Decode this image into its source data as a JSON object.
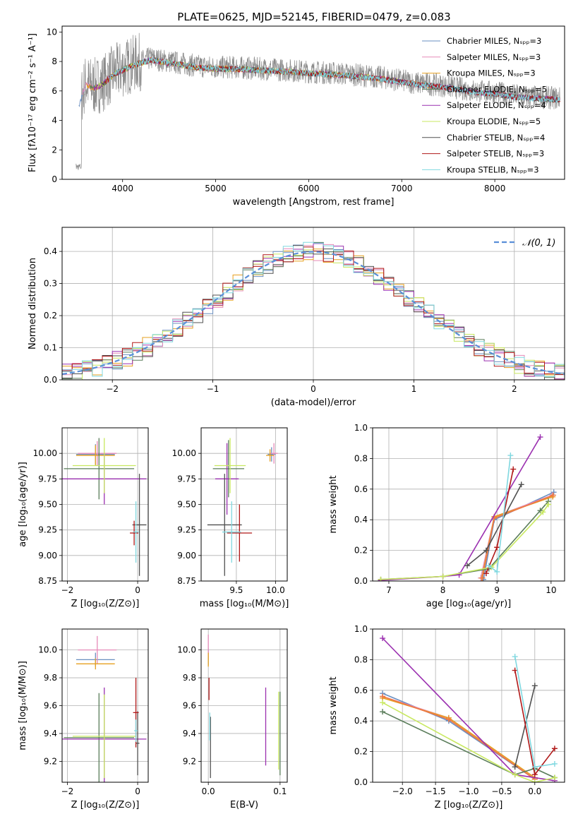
{
  "figure_title": "PLATE=0625, MJD=52145, FIBERID=0479, z=0.083",
  "colors": {
    "Chabrier MILES": "#6a8fc0",
    "Salpeter MILES": "#e68ab8",
    "Kroupa MILES": "#e6a020",
    "Chabrier ELODIE": "#5a7d5a",
    "Salpeter ELODIE": "#9b30b0",
    "Kroupa ELODIE": "#c8e860",
    "Chabrier STELIB": "#505050",
    "Salpeter STELIB": "#b01818",
    "Kroupa STELIB": "#80d8e0",
    "model_orange": "#ee7744",
    "normal": "#5a8fd8",
    "grid": "#b0b0b0"
  },
  "chart_data": [
    {
      "id": "spectrum",
      "type": "line",
      "xlabel": "wavelength [Angstrom, rest frame]",
      "ylabel": "Flux [fλ10⁻¹⁷ erg cm⁻² s⁻¹ A⁻¹]",
      "xlim": [
        3350,
        8750
      ],
      "ylim": [
        0,
        10.4
      ],
      "xticks": [
        4000,
        5000,
        6000,
        7000,
        8000
      ],
      "yticks": [
        0,
        2,
        4,
        6,
        8,
        10
      ],
      "grid": false,
      "legend_position": "top-right",
      "continuum": {
        "x": [
          3500,
          3600,
          3700,
          3800,
          3900,
          4000,
          4100,
          4300,
          4500,
          4800,
          5000,
          5200,
          5500,
          5800,
          6000,
          6300,
          6500,
          6800,
          7000,
          7200,
          7400,
          7600,
          7800,
          8000,
          8200,
          8400,
          8700
        ],
        "y": [
          4.5,
          6.5,
          6.3,
          6.6,
          7.2,
          7.5,
          7.8,
          8.2,
          8.0,
          7.7,
          7.6,
          7.6,
          7.5,
          7.4,
          7.3,
          7.2,
          7.1,
          6.9,
          6.7,
          6.5,
          6.4,
          6.2,
          6.0,
          5.9,
          5.7,
          5.6,
          5.5
        ]
      },
      "series": [
        {
          "name": "Chabrier MILES, Nₛₚₚ=3",
          "key": "Chabrier MILES"
        },
        {
          "name": "Salpeter MILES, Nₛₚₚ=3",
          "key": "Salpeter MILES"
        },
        {
          "name": "Kroupa MILES, Nₛₚₚ=3",
          "key": "Kroupa MILES"
        },
        {
          "name": "Chabrier ELODIE, Nₛₚₚ=5",
          "key": "Chabrier ELODIE"
        },
        {
          "name": "Salpeter ELODIE, Nₛₚₚ=4",
          "key": "Salpeter ELODIE"
        },
        {
          "name": "Kroupa ELODIE, Nₛₚₚ=5",
          "key": "Kroupa ELODIE"
        },
        {
          "name": "Chabrier STELIB, Nₛₚₚ=4",
          "key": "Chabrier STELIB"
        },
        {
          "name": "Salpeter STELIB, Nₛₚₚ=3",
          "key": "Salpeter STELIB"
        },
        {
          "name": "Kroupa STELIB, Nₛₚₚ=3",
          "key": "Kroupa STELIB"
        }
      ]
    },
    {
      "id": "residuals",
      "type": "line",
      "xlabel": "(data-model)/error",
      "ylabel": "Normed distribution",
      "xlim": [
        -2.5,
        2.5
      ],
      "ylim": [
        0,
        0.475
      ],
      "xticks": [
        -2,
        -1,
        0,
        1,
        2
      ],
      "yticks": [
        0.0,
        0.1,
        0.2,
        0.3,
        0.4
      ],
      "grid": true,
      "legend_position": "top-right",
      "legend": "𝒩(0, 1)",
      "bin_width": 0.1
    },
    {
      "id": "age_vs_Z",
      "type": "scatter",
      "xlabel": "Z [log₁₀(Z/Z⊙)]",
      "ylabel": "age  [log₁₀(age/yr)]",
      "xlim": [
        -2.15,
        0.3
      ],
      "ylim": [
        8.75,
        10.25
      ],
      "xticks": [
        -2,
        0
      ],
      "yticks": [
        8.75,
        9.0,
        9.25,
        9.5,
        9.75,
        10.0
      ],
      "grid": true,
      "points": [
        {
          "key": "Chabrier MILES",
          "x": -1.2,
          "xerr": 0.55,
          "y": 9.99,
          "yerr": 0.1
        },
        {
          "key": "Salpeter MILES",
          "x": -1.15,
          "xerr": 0.55,
          "y": 10.0,
          "yerr": 0.12
        },
        {
          "key": "Kroupa MILES",
          "x": -1.2,
          "xerr": 0.55,
          "y": 9.98,
          "yerr": 0.1
        },
        {
          "key": "Chabrier ELODIE",
          "x": -1.1,
          "xerr": 1.0,
          "y": 9.85,
          "yerr": 0.3
        },
        {
          "key": "Salpeter ELODIE",
          "x": -0.95,
          "xerr": 1.2,
          "y": 9.75,
          "yerr": 0.25
        },
        {
          "key": "Kroupa ELODIE",
          "x": -0.95,
          "xerr": 0.9,
          "y": 9.88,
          "yerr": 0.27
        },
        {
          "key": "Chabrier STELIB",
          "x": 0.05,
          "xerr": 0.2,
          "y": 9.3,
          "yerr": 0.5
        },
        {
          "key": "Salpeter STELIB",
          "x": -0.1,
          "xerr": 0.12,
          "y": 9.22,
          "yerr": 0.12
        },
        {
          "key": "Kroupa STELIB",
          "x": -0.05,
          "xerr": 0.08,
          "y": 9.23,
          "yerr": 0.3
        }
      ]
    },
    {
      "id": "age_vs_mass",
      "type": "scatter",
      "xlabel": "mass [log₁₀(M/M⊙)]",
      "ylabel": "",
      "xlim": [
        9.05,
        10.15
      ],
      "ylim": [
        8.75,
        10.25
      ],
      "xticks": [
        9.5,
        10.0
      ],
      "yticks": [
        8.75,
        9.0,
        9.25,
        9.5,
        9.75,
        10.0
      ],
      "grid": true,
      "points": [
        {
          "key": "Chabrier MILES",
          "x": 9.95,
          "xerr": 0.05,
          "y": 9.99,
          "yerr": 0.07
        },
        {
          "key": "Salpeter MILES",
          "x": 9.98,
          "xerr": 0.05,
          "y": 10.0,
          "yerr": 0.1
        },
        {
          "key": "Kroupa MILES",
          "x": 9.93,
          "xerr": 0.05,
          "y": 9.98,
          "yerr": 0.06
        },
        {
          "key": "Chabrier ELODIE",
          "x": 9.4,
          "xerr": 0.2,
          "y": 9.85,
          "yerr": 0.28
        },
        {
          "key": "Salpeter ELODIE",
          "x": 9.38,
          "xerr": 0.15,
          "y": 9.75,
          "yerr": 0.35
        },
        {
          "key": "Kroupa ELODIE",
          "x": 9.42,
          "xerr": 0.2,
          "y": 9.88,
          "yerr": 0.27
        },
        {
          "key": "Chabrier STELIB",
          "x": 9.35,
          "xerr": 0.22,
          "y": 9.3,
          "yerr": 0.5
        },
        {
          "key": "Salpeter STELIB",
          "x": 9.54,
          "xerr": 0.16,
          "y": 9.22,
          "yerr": 0.28
        },
        {
          "key": "Kroupa STELIB",
          "x": 9.44,
          "xerr": 0.12,
          "y": 9.23,
          "yerr": 0.3
        }
      ]
    },
    {
      "id": "weight_vs_age",
      "type": "line",
      "xlabel": "age  [log₁₀(age/yr)]",
      "ylabel": "mass weight",
      "xlim": [
        6.7,
        10.25
      ],
      "ylim": [
        0,
        1.0
      ],
      "xticks": [
        7,
        8,
        9,
        10
      ],
      "yticks": [
        0.0,
        0.2,
        0.4,
        0.6,
        0.8,
        1.0
      ],
      "grid": true,
      "series": [
        {
          "key": "Chabrier MILES",
          "x": [
            8.75,
            8.95,
            10.05
          ],
          "y": [
            0.01,
            0.4,
            0.58
          ]
        },
        {
          "key": "Salpeter MILES",
          "x": [
            8.7,
            8.95,
            10.02
          ],
          "y": [
            0.02,
            0.42,
            0.56
          ]
        },
        {
          "key": "Kroupa MILES",
          "x": [
            8.72,
            8.95,
            10.03
          ],
          "y": [
            0.02,
            0.42,
            0.55
          ]
        },
        {
          "key": "model_orange",
          "x": [
            8.73,
            8.95,
            10.04
          ],
          "y": [
            0.02,
            0.41,
            0.56
          ]
        },
        {
          "key": "Chabrier ELODIE",
          "x": [
            6.85,
            8.0,
            8.85,
            9.8,
            9.95
          ],
          "y": [
            0.01,
            0.03,
            0.08,
            0.46,
            0.52
          ]
        },
        {
          "key": "Salpeter ELODIE",
          "x": [
            6.85,
            8.0,
            8.3,
            9.8
          ],
          "y": [
            0.005,
            0.03,
            0.04,
            0.94
          ]
        },
        {
          "key": "Kroupa ELODIE",
          "x": [
            6.85,
            8.0,
            8.9,
            9.85,
            9.95
          ],
          "y": [
            0.01,
            0.03,
            0.09,
            0.45,
            0.5
          ]
        },
        {
          "key": "Chabrier STELIB",
          "x": [
            8.45,
            8.8,
            9.45
          ],
          "y": [
            0.1,
            0.2,
            0.63
          ]
        },
        {
          "key": "Salpeter STELIB",
          "x": [
            8.8,
            9.0,
            9.3
          ],
          "y": [
            0.05,
            0.22,
            0.73
          ]
        },
        {
          "key": "Kroupa STELIB",
          "x": [
            8.85,
            9.0,
            9.25
          ],
          "y": [
            0.1,
            0.06,
            0.82
          ]
        }
      ]
    },
    {
      "id": "mass_vs_Z",
      "type": "scatter",
      "xlabel": "Z [log₁₀(Z/Z⊙)]",
      "ylabel": "mass [log₁₀(M/M⊙)]",
      "xlim": [
        -2.15,
        0.3
      ],
      "ylim": [
        9.05,
        10.15
      ],
      "xticks": [
        -2,
        0
      ],
      "yticks": [
        9.2,
        9.4,
        9.6,
        9.8,
        10.0
      ],
      "grid": true,
      "points": [
        {
          "key": "Chabrier MILES",
          "x": -1.2,
          "xerr": 0.55,
          "y": 9.93,
          "yerr": 0.05
        },
        {
          "key": "Salpeter MILES",
          "x": -1.15,
          "xerr": 0.55,
          "y": 10.0,
          "yerr": 0.1
        },
        {
          "key": "Kroupa MILES",
          "x": -1.2,
          "xerr": 0.55,
          "y": 9.9,
          "yerr": 0.04
        },
        {
          "key": "Chabrier ELODIE",
          "x": -1.1,
          "xerr": 1.0,
          "y": 9.37,
          "yerr": 0.32
        },
        {
          "key": "Salpeter ELODIE",
          "x": -0.95,
          "xerr": 1.2,
          "y": 9.36,
          "yerr": 0.37
        },
        {
          "key": "Kroupa ELODIE",
          "x": -0.95,
          "xerr": 0.9,
          "y": 9.38,
          "yerr": 0.3
        },
        {
          "key": "Chabrier STELIB",
          "x": 0.0,
          "xerr": 0.05,
          "y": 9.33,
          "yerr": 0.23
        },
        {
          "key": "Salpeter STELIB",
          "x": -0.05,
          "xerr": 0.08,
          "y": 9.55,
          "yerr": 0.25
        },
        {
          "key": "Kroupa STELIB",
          "x": -0.05,
          "xerr": 0.05,
          "y": 9.42,
          "yerr": 0.08
        }
      ]
    },
    {
      "id": "mass_vs_ebv",
      "type": "scatter",
      "xlabel": "E(B-V)",
      "ylabel": "",
      "xlim": [
        -0.01,
        0.11
      ],
      "ylim": [
        9.05,
        10.15
      ],
      "xticks": [
        0.0,
        0.1
      ],
      "yticks": [
        9.2,
        9.4,
        9.6,
        9.8,
        10.0
      ],
      "grid": true,
      "points": [
        {
          "key": "Chabrier MILES",
          "x": 0.0,
          "xerr": 0.0,
          "y": 9.95,
          "yerr": 0.06
        },
        {
          "key": "Salpeter MILES",
          "x": 0.0,
          "xerr": 0.0,
          "y": 10.03,
          "yerr": 0.08
        },
        {
          "key": "Kroupa MILES",
          "x": 0.0,
          "xerr": 0.0,
          "y": 9.93,
          "yerr": 0.05
        },
        {
          "key": "Chabrier ELODIE",
          "x": 0.1,
          "xerr": 0.0,
          "y": 9.4,
          "yerr": 0.3
        },
        {
          "key": "Salpeter ELODIE",
          "x": 0.08,
          "xerr": 0.0,
          "y": 9.45,
          "yerr": 0.28
        },
        {
          "key": "Kroupa ELODIE",
          "x": 0.098,
          "xerr": 0.0,
          "y": 9.42,
          "yerr": 0.28
        },
        {
          "key": "Chabrier STELIB",
          "x": 0.003,
          "xerr": 0.0,
          "y": 9.3,
          "yerr": 0.22
        },
        {
          "key": "Salpeter STELIB",
          "x": 0.001,
          "xerr": 0.0,
          "y": 9.72,
          "yerr": 0.08
        },
        {
          "key": "Kroupa STELIB",
          "x": 0.002,
          "xerr": 0.0,
          "y": 9.45,
          "yerr": 0.1
        }
      ]
    },
    {
      "id": "weight_vs_Z",
      "type": "line",
      "xlabel": "Z [log₁₀(Z/Z⊙)]",
      "ylabel": "mass weight",
      "xlim": [
        -2.45,
        0.45
      ],
      "ylim": [
        0,
        1.0
      ],
      "xticks": [
        -2.0,
        -1.5,
        -1.0,
        -0.5,
        0.0
      ],
      "xticklabels": [
        "−2.0",
        "−1.5",
        "−1.0",
        "−0.5",
        "0.0"
      ],
      "yticks": [
        0.0,
        0.2,
        0.4,
        0.6,
        0.8,
        1.0
      ],
      "grid": true,
      "series": [
        {
          "key": "Chabrier MILES",
          "x": [
            -2.3,
            -1.3,
            0.0
          ],
          "y": [
            0.58,
            0.4,
            0.02
          ]
        },
        {
          "key": "Salpeter MILES",
          "x": [
            -2.3,
            -1.3,
            0.0
          ],
          "y": [
            0.56,
            0.42,
            0.02
          ]
        },
        {
          "key": "Kroupa MILES",
          "x": [
            -2.3,
            -1.3,
            0.0
          ],
          "y": [
            0.55,
            0.42,
            0.03
          ]
        },
        {
          "key": "model_orange",
          "x": [
            -2.3,
            -1.3,
            0.0
          ],
          "y": [
            0.56,
            0.41,
            0.02
          ]
        },
        {
          "key": "Chabrier ELODIE",
          "x": [
            -2.3,
            -0.3,
            0.0,
            0.3
          ],
          "y": [
            0.46,
            0.05,
            0.09,
            0.03
          ]
        },
        {
          "key": "Salpeter ELODIE",
          "x": [
            -2.3,
            -0.3,
            0.3
          ],
          "y": [
            0.94,
            0.05,
            0.01
          ]
        },
        {
          "key": "Kroupa ELODIE",
          "x": [
            -2.3,
            -0.3,
            0.0,
            0.3
          ],
          "y": [
            0.52,
            0.05,
            0.0,
            0.03
          ]
        },
        {
          "key": "Chabrier STELIB",
          "x": [
            -0.3,
            0.0
          ],
          "y": [
            0.1,
            0.63
          ]
        },
        {
          "key": "Salpeter STELIB",
          "x": [
            -0.3,
            0.0,
            0.3
          ],
          "y": [
            0.73,
            0.05,
            0.22
          ]
        },
        {
          "key": "Kroupa STELIB",
          "x": [
            -0.3,
            0.0,
            0.3
          ],
          "y": [
            0.82,
            0.1,
            0.12
          ]
        }
      ]
    }
  ]
}
